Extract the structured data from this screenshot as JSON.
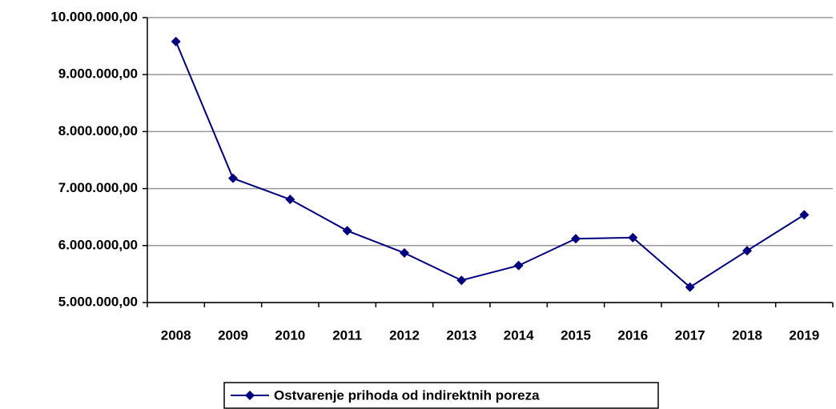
{
  "chart_data": {
    "type": "line",
    "categories": [
      "2008",
      "2009",
      "2010",
      "2011",
      "2012",
      "2013",
      "2014",
      "2015",
      "2016",
      "2017",
      "2018",
      "2019"
    ],
    "series": [
      {
        "name": "Ostvarenje prihoda od indirektnih poreza",
        "color": "#000080",
        "values": [
          9580000,
          7180000,
          6810000,
          6260000,
          5870000,
          5390000,
          5650000,
          6120000,
          6140000,
          5270000,
          5910000,
          6540000
        ]
      }
    ],
    "ylim": [
      5000000,
      10000000
    ],
    "yticks": [
      {
        "value": 5000000,
        "label": "5.000.000,00"
      },
      {
        "value": 6000000,
        "label": "6.000.000,00"
      },
      {
        "value": 7000000,
        "label": "7.000.000,00"
      },
      {
        "value": 8000000,
        "label": "8.000.000,00"
      },
      {
        "value": 9000000,
        "label": "9.000.000,00"
      },
      {
        "value": 10000000,
        "label": "10.000.000,00"
      }
    ],
    "grid": true,
    "legend": "bottom"
  }
}
